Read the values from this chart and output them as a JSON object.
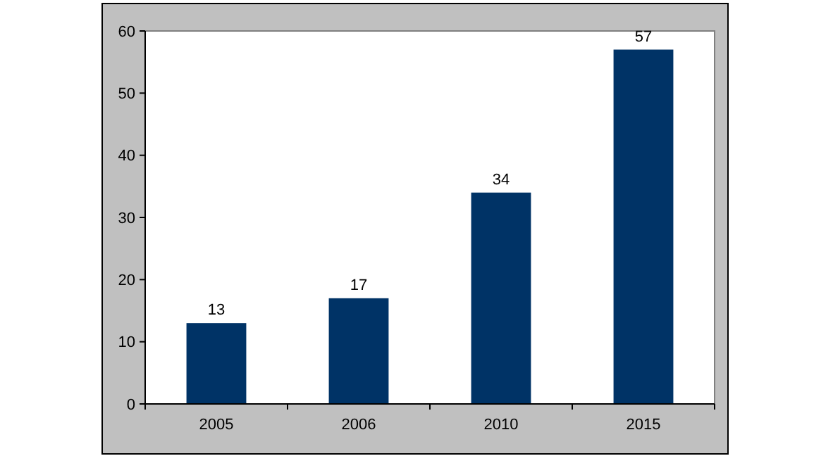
{
  "chart_data": {
    "type": "bar",
    "categories": [
      "2005",
      "2006",
      "2010",
      "2015"
    ],
    "values": [
      13,
      17,
      34,
      57
    ],
    "color": "#003366",
    "ylim": [
      0,
      60
    ],
    "yticks": [
      0,
      10,
      20,
      30,
      40,
      50,
      60
    ],
    "data_labels": true
  }
}
